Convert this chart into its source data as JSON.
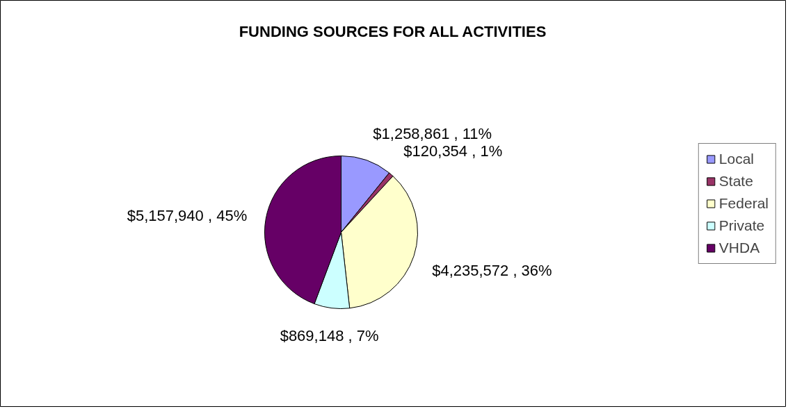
{
  "chart_data": {
    "type": "pie",
    "title": "FUNDING SOURCES FOR ALL ACTIVITIES",
    "categories": [
      "Local",
      "State",
      "Federal",
      "Private",
      "VHDA"
    ],
    "values": [
      1258861,
      120354,
      4235572,
      869148,
      5157940
    ],
    "colors": [
      "#9999ff",
      "#993366",
      "#ffffcc",
      "#ccffff",
      "#660066"
    ],
    "value_labels": [
      "$1,258,861 , 11%",
      "$120,354 , 1%",
      "$4,235,572 , 36%",
      "$869,148 , 7%",
      "$5,157,940 , 45%"
    ],
    "legend": "right"
  }
}
